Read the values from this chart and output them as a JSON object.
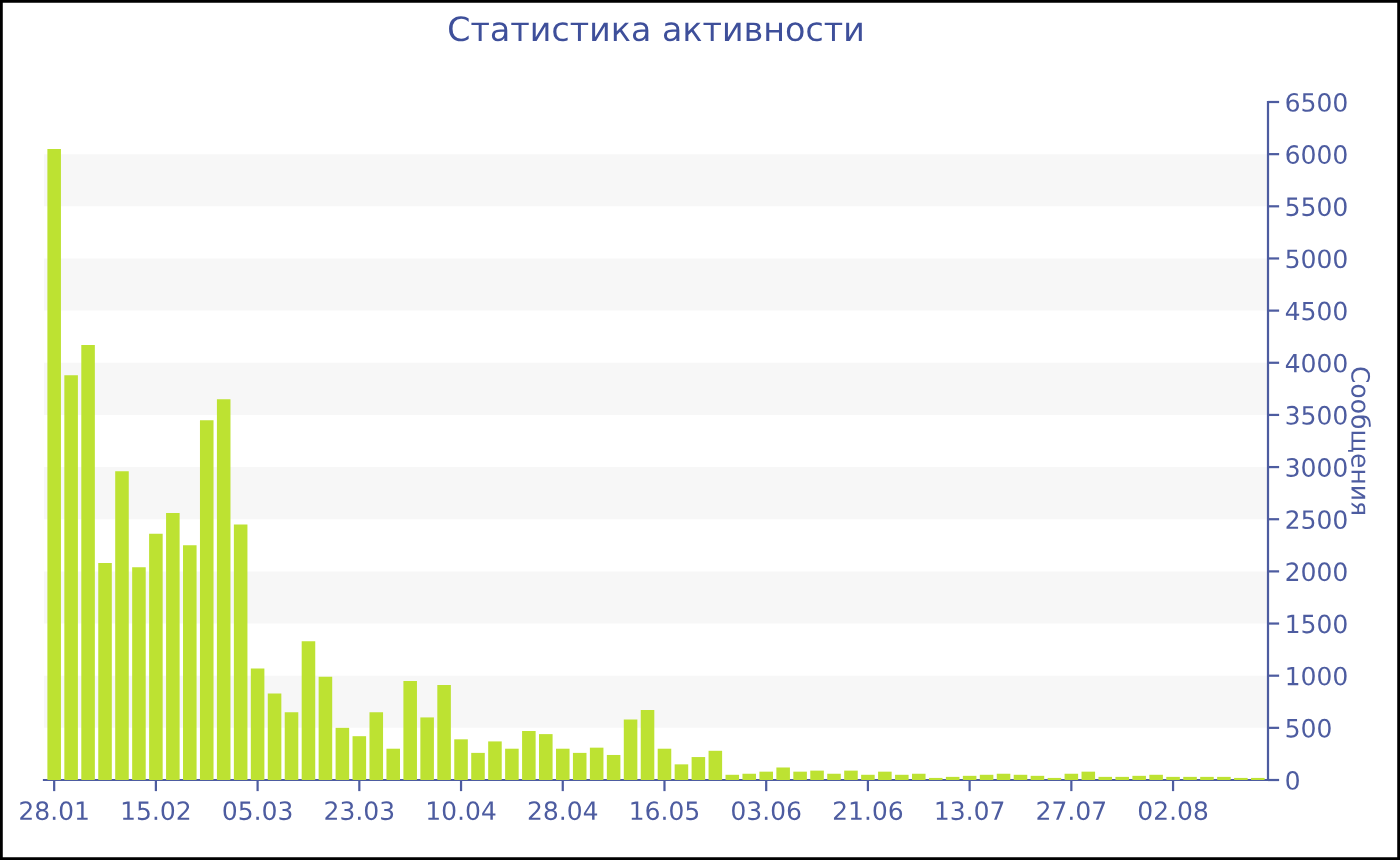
{
  "chart_data": {
    "type": "bar",
    "title": "Статистика активности",
    "ylabel": "Сообщения",
    "categories": [
      "28.01",
      null,
      null,
      null,
      null,
      null,
      "15.02",
      null,
      null,
      null,
      null,
      null,
      "05.03",
      null,
      null,
      null,
      null,
      null,
      "23.03",
      null,
      null,
      null,
      null,
      null,
      "10.04",
      null,
      null,
      null,
      null,
      null,
      "28.04",
      null,
      null,
      null,
      null,
      null,
      "16.05",
      null,
      null,
      null,
      null,
      null,
      "03.06",
      null,
      null,
      null,
      null,
      null,
      "21.06",
      null,
      null,
      null,
      null,
      null,
      "13.07",
      null,
      null,
      null,
      null,
      null,
      "27.07",
      null,
      null,
      null,
      null,
      null,
      "02.08",
      null,
      null,
      null,
      null,
      null
    ],
    "series": [
      {
        "color": "#bde232",
        "values": [
          6050,
          3880,
          4170,
          2080,
          2960,
          2040,
          2360,
          2560,
          2250,
          3450,
          3650,
          2450,
          1070,
          830,
          650,
          1330,
          990,
          500,
          420,
          650,
          300,
          950,
          600,
          910,
          390,
          260,
          370,
          300,
          470,
          440,
          300,
          260,
          310,
          240,
          580,
          670,
          300,
          150,
          220,
          280,
          50,
          60,
          80,
          120,
          80,
          90,
          60,
          90,
          50,
          80,
          50,
          60,
          20,
          30,
          40,
          50,
          60,
          50,
          40,
          20,
          60,
          80,
          30,
          30,
          40,
          50,
          30,
          30,
          30,
          30,
          20,
          20
        ]
      }
    ],
    "ylim": [
      0,
      6500
    ],
    "yticks": [
      0,
      500,
      1000,
      1500,
      2000,
      2500,
      3000,
      3500,
      4000,
      4500,
      5000,
      5500,
      6000,
      6500
    ],
    "bands": [
      {
        "axis": "y",
        "from": 500,
        "to": 1000,
        "color": "#f7f7f7"
      },
      {
        "axis": "y",
        "from": 1500,
        "to": 2000,
        "color": "#f7f7f7"
      },
      {
        "axis": "y",
        "from": 2500,
        "to": 3000,
        "color": "#f7f7f7"
      },
      {
        "axis": "y",
        "from": 3500,
        "to": 4000,
        "color": "#f7f7f7"
      },
      {
        "axis": "y",
        "from": 4500,
        "to": 5000,
        "color": "#f7f7f7"
      },
      {
        "axis": "y",
        "from": 5500,
        "to": 6000,
        "color": "#f7f7f7"
      }
    ],
    "grid": false,
    "legend": false
  }
}
